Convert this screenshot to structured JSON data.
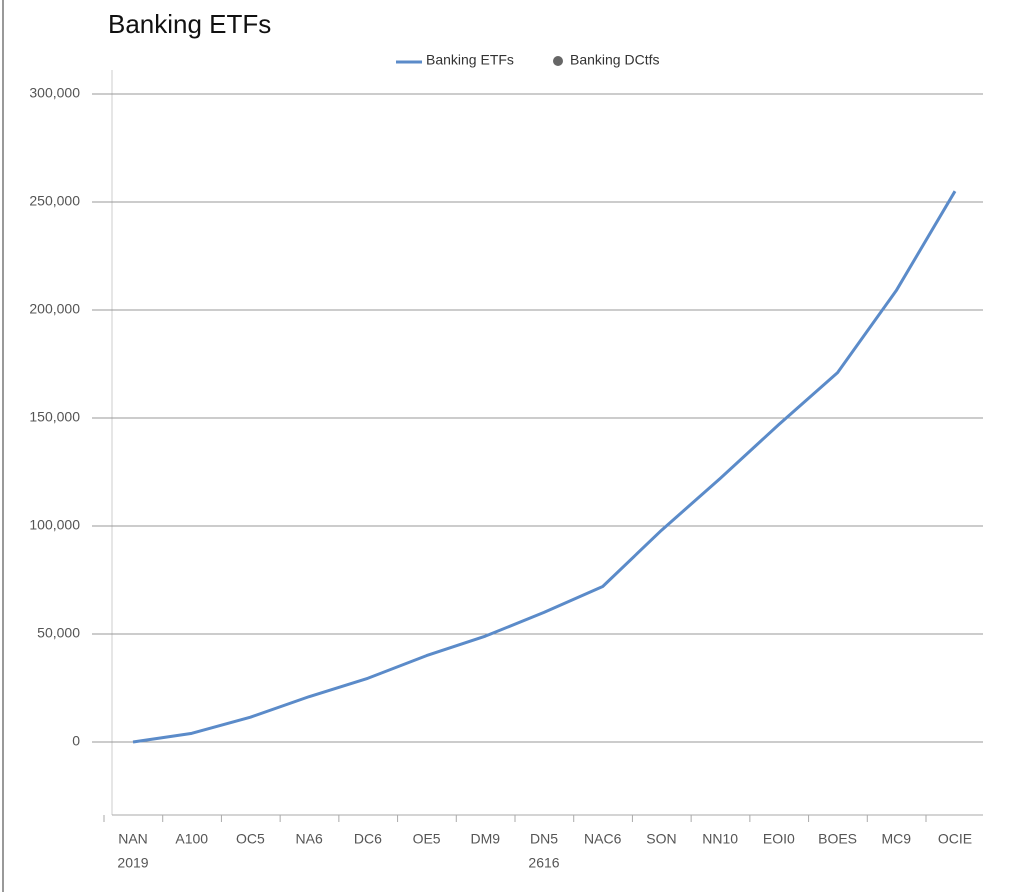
{
  "chart_data": {
    "type": "line",
    "title": "Banking ETFs",
    "categories": [
      "NAN",
      "A100",
      "OC5",
      "NA6",
      "DC6",
      "OE5",
      "DM9",
      "DN5",
      "NAC6",
      "SON",
      "NN10",
      "EOI0",
      "BOES",
      "MC9",
      "OCIE"
    ],
    "x_sublabels": [
      "2019",
      "2616"
    ],
    "series": [
      {
        "name": "Banking ETFs",
        "color": "#5b8bc9",
        "values": [
          0,
          4000,
          11500,
          21000,
          29500,
          40000,
          49000,
          60000,
          72000,
          98000,
          122000,
          147000,
          171000,
          209000,
          255000
        ]
      },
      {
        "name": "Banking DCtfs",
        "color": "#666666",
        "values": [
          null,
          null,
          null,
          null,
          null,
          null,
          null,
          null,
          null,
          null,
          null,
          null,
          null,
          null,
          null
        ]
      }
    ],
    "ylim": [
      -35000,
      320000
    ],
    "yticks": [
      {
        "value": 0,
        "label": "0"
      },
      {
        "value": 50000,
        "label": "50,000"
      },
      {
        "value": 100000,
        "label": "100,000"
      },
      {
        "value": 150000,
        "label": "150,000"
      },
      {
        "value": 200000,
        "label": "200,000"
      },
      {
        "value": 250000,
        "label": "250,000"
      },
      {
        "value": 300000,
        "label": "300,000"
      }
    ],
    "grid": true
  }
}
